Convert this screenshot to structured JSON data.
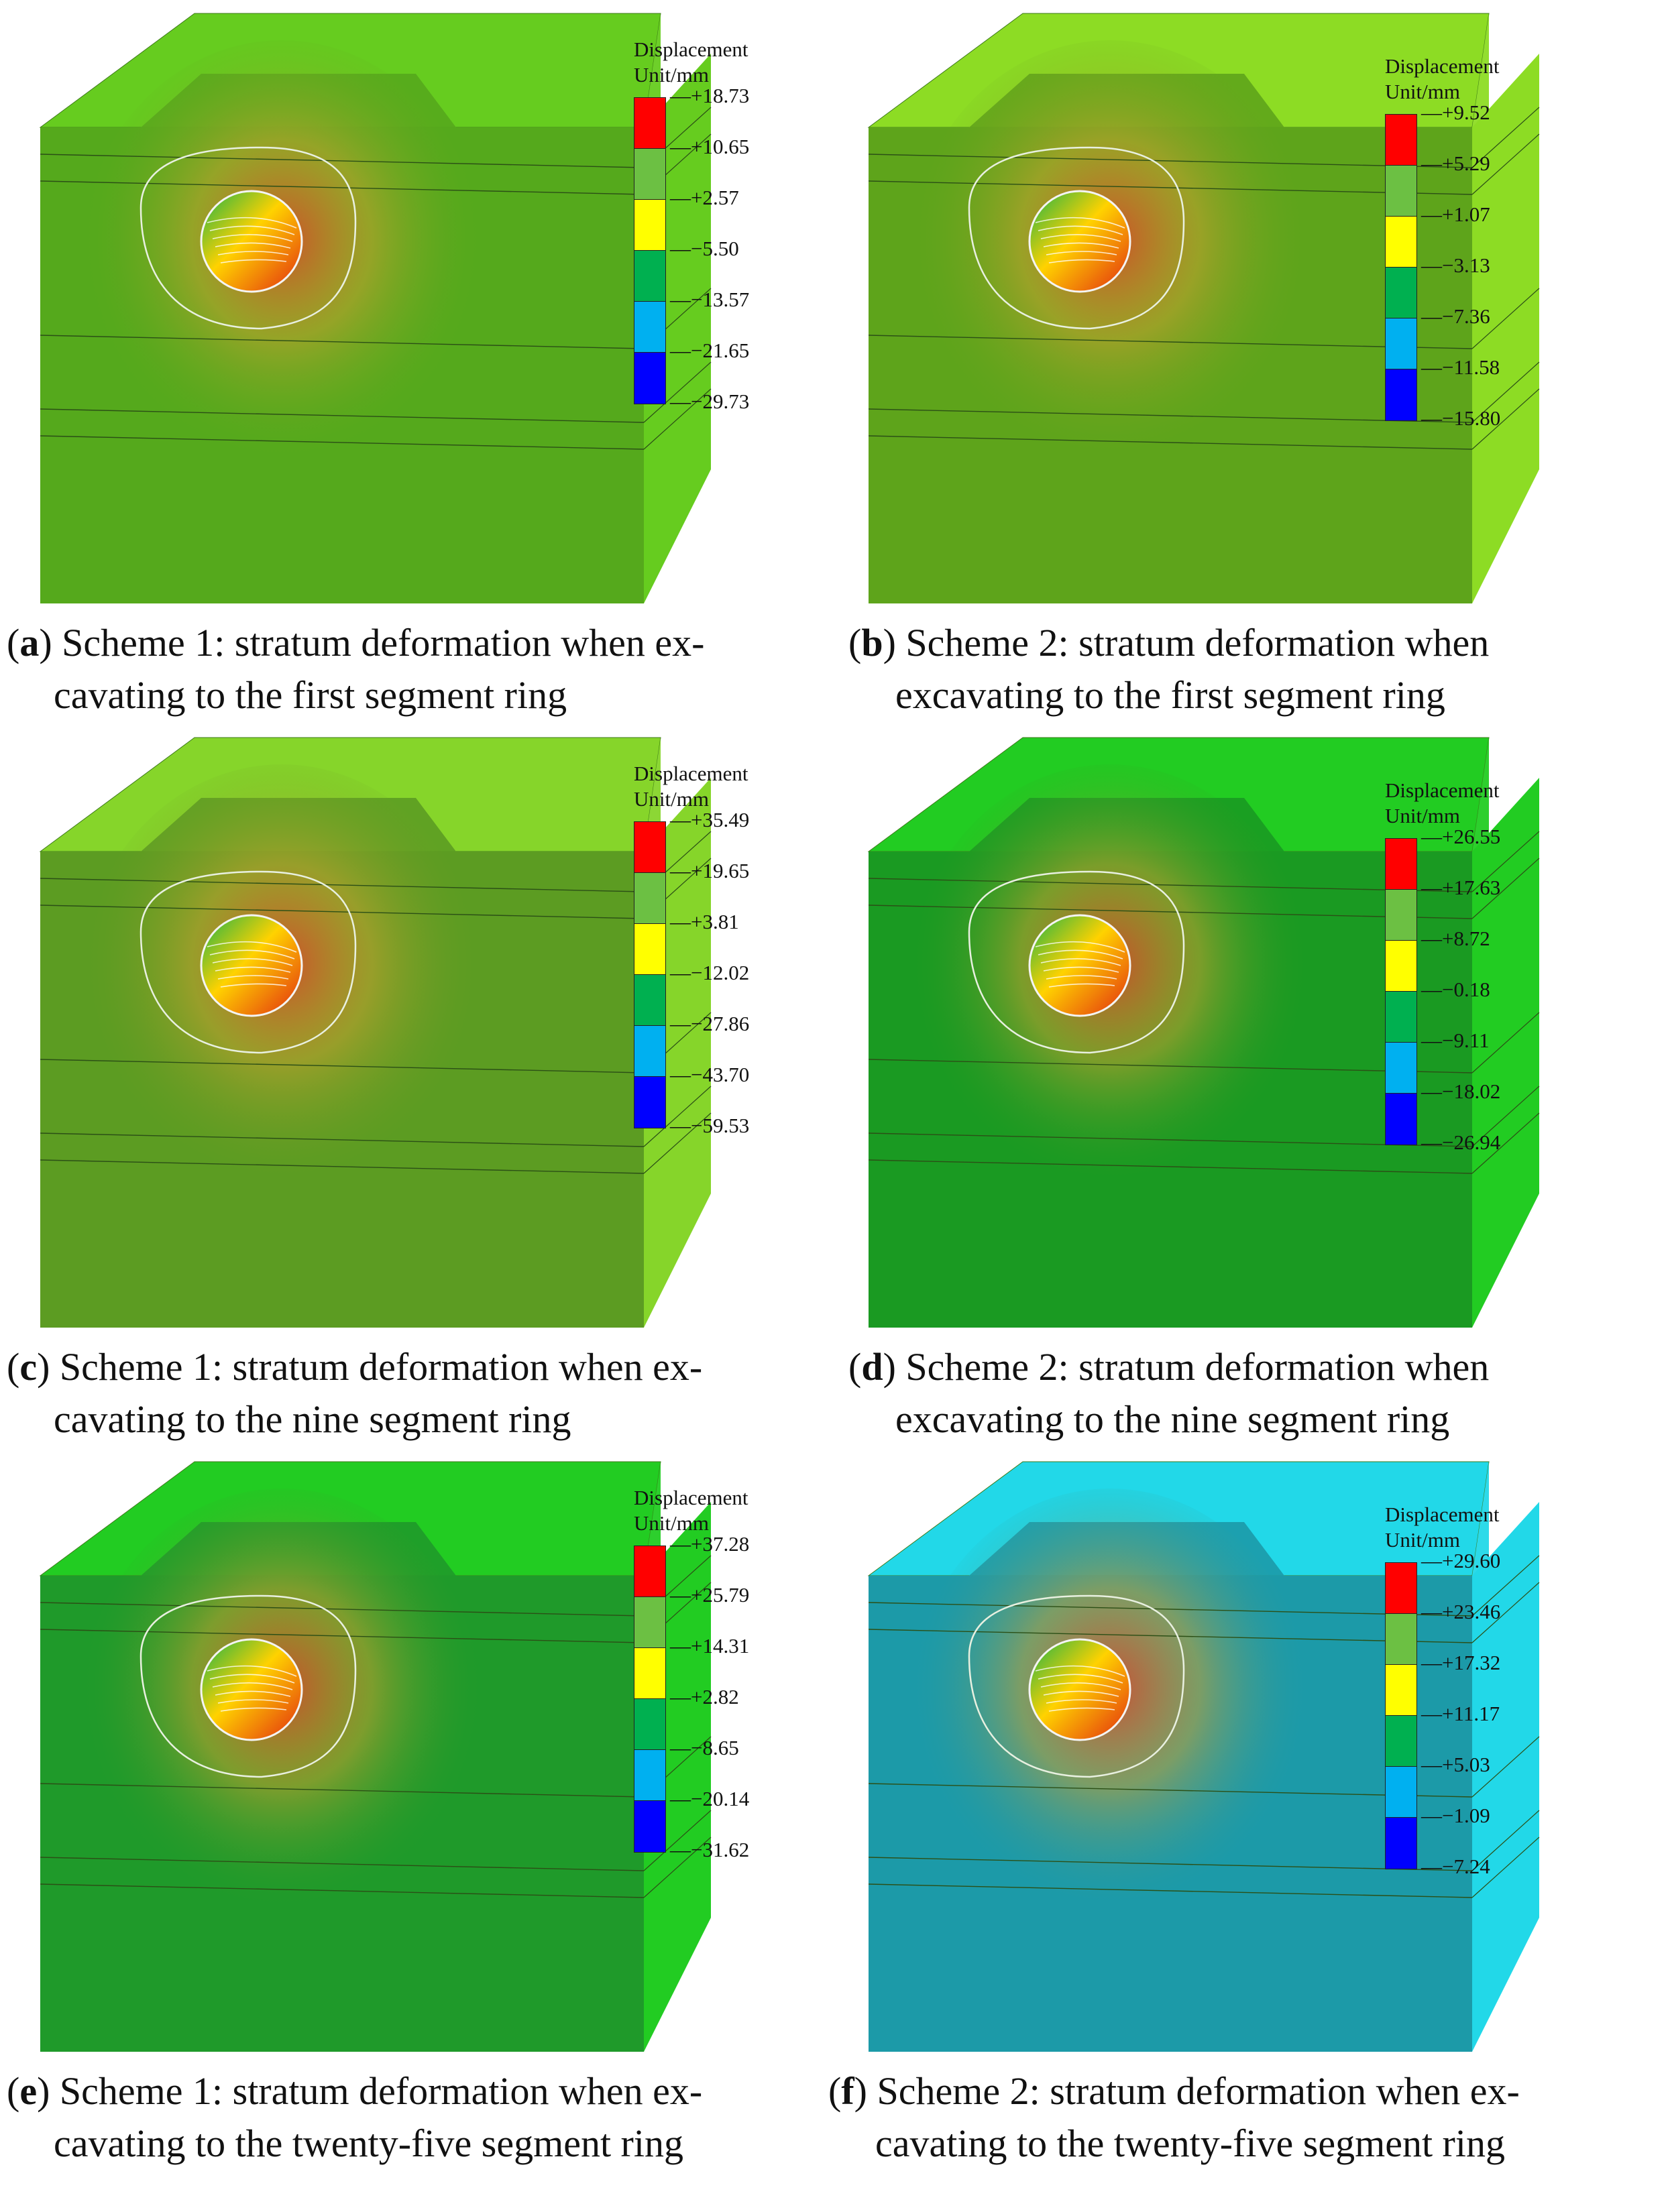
{
  "figure": {
    "legend_title": "Displacement",
    "legend_unit": "Unit/mm",
    "legend_colors": [
      "#ff0000",
      "#6cc043",
      "#ffff00",
      "#00b050",
      "#00b0f0",
      "#0000ff"
    ],
    "panels": [
      {
        "tag": "a",
        "caption_lines": [
          "Scheme 1: stratum deformation when ex-",
          "cavating to the first segment ring"
        ],
        "legend_values": [
          "+18.73",
          "+10.65",
          "+2.57",
          "−5.50",
          "−13.57",
          "−21.65",
          "−29.73"
        ],
        "field_color": "#66cc1f",
        "front_color": "#55a91c"
      },
      {
        "tag": "b",
        "caption_lines": [
          "Scheme 2: stratum deformation when",
          "excavating to the first segment ring"
        ],
        "legend_values": [
          "+9.52",
          "+5.29",
          "+1.07",
          "−3.13",
          "−7.36",
          "−11.58",
          "−15.80"
        ],
        "field_color": "#8ddc24",
        "front_color": "#5ea41b"
      },
      {
        "tag": "c",
        "caption_lines": [
          "Scheme 1: stratum deformation when ex-",
          "cavating to the nine segment ring"
        ],
        "legend_values": [
          "+35.49",
          "+19.65",
          "+3.81",
          "−12.02",
          "−27.86",
          "−43.70",
          "−59.53"
        ],
        "field_color": "#86d52a",
        "front_color": "#5c9c22"
      },
      {
        "tag": "d",
        "caption_lines": [
          "Scheme 2: stratum deformation when",
          "excavating to the nine segment ring"
        ],
        "legend_values": [
          "+26.55",
          "+17.63",
          "+8.72",
          "−0.18",
          "−9.11",
          "−18.02",
          "−26.94"
        ],
        "field_color": "#22cc22",
        "front_color": "#1a9a22"
      },
      {
        "tag": "e",
        "caption_lines": [
          "Scheme 1: stratum deformation when ex-",
          "cavating to the twenty-five segment ring"
        ],
        "legend_values": [
          "+37.28",
          "+25.79",
          "+14.31",
          "+2.82",
          "−8.65",
          "−20.14",
          "−31.62"
        ],
        "field_color": "#22cc22",
        "front_color": "#1f9a2a"
      },
      {
        "tag": "f",
        "caption_lines": [
          "Scheme 2: stratum deformation when ex-",
          "cavating to the twenty-five segment ring"
        ],
        "legend_values": [
          "+29.60",
          "+23.46",
          "+17.32",
          "+11.17",
          "+5.03",
          "−1.09",
          "−7.24"
        ],
        "field_color": "#22d8e8",
        "front_color": "#1c9aa8"
      }
    ]
  }
}
